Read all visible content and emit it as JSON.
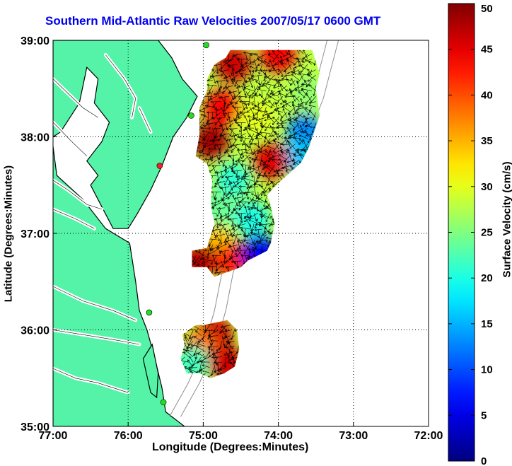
{
  "title": "Southern Mid-Atlantic Raw Velocities 2007/05/17 0600 GMT",
  "axes": {
    "xlabel": "Longitude (Degrees:Minutes)",
    "ylabel": "Latitude (Degrees:Minutes)",
    "xticks": [
      {
        "value": -77,
        "label": "77:00"
      },
      {
        "value": -76,
        "label": "76:00"
      },
      {
        "value": -75,
        "label": "75:00"
      },
      {
        "value": -74,
        "label": "74:00"
      },
      {
        "value": -73,
        "label": "73:00"
      },
      {
        "value": -72,
        "label": "72:00"
      }
    ],
    "yticks": [
      {
        "value": 35,
        "label": "35:00"
      },
      {
        "value": 36,
        "label": "36:00"
      },
      {
        "value": 37,
        "label": "37:00"
      },
      {
        "value": 38,
        "label": "38:00"
      },
      {
        "value": 39,
        "label": "39:00"
      }
    ],
    "xlim": [
      -77,
      -72
    ],
    "ylim": [
      35,
      39
    ],
    "grid": true
  },
  "colorbar": {
    "label": "Surface Velocity (cm/s)",
    "min": 0,
    "max": 50,
    "ticks": [
      "0",
      "5",
      "10",
      "15",
      "20",
      "25",
      "30",
      "35",
      "40",
      "45",
      "50"
    ],
    "colormap": "jet"
  },
  "colors": {
    "land": "#55f3a8",
    "ocean": "#ffffff",
    "coastline": "#000000",
    "bathymetry": "#8f8f8f",
    "title": "#0000ee"
  },
  "radar_sites": [
    {
      "lon": -74.96,
      "lat": 38.95,
      "color": "#22dd22"
    },
    {
      "lon": -75.16,
      "lat": 38.22,
      "color": "#22dd22"
    },
    {
      "lon": -75.58,
      "lat": 37.7,
      "color": "#ee2222"
    },
    {
      "lon": -75.72,
      "lat": 36.18,
      "color": "#22dd22"
    },
    {
      "lon": -75.53,
      "lat": 35.25,
      "color": "#22dd22"
    }
  ],
  "velocity_regions": [
    {
      "name": "northern-field",
      "outline": [
        [
          -74.64,
          38.9
        ],
        [
          -73.55,
          38.9
        ],
        [
          -73.45,
          38.66
        ],
        [
          -73.5,
          38.5
        ],
        [
          -73.45,
          38.22
        ],
        [
          -73.6,
          37.88
        ],
        [
          -73.7,
          37.73
        ],
        [
          -74.0,
          37.52
        ],
        [
          -74.15,
          37.4
        ],
        [
          -74.1,
          37.28
        ],
        [
          -74.05,
          37.1
        ],
        [
          -74.1,
          36.9
        ],
        [
          -74.15,
          36.82
        ],
        [
          -74.4,
          36.72
        ],
        [
          -74.5,
          36.65
        ],
        [
          -74.85,
          36.55
        ],
        [
          -74.95,
          36.65
        ],
        [
          -75.15,
          36.65
        ],
        [
          -75.15,
          36.82
        ],
        [
          -74.95,
          36.85
        ],
        [
          -74.85,
          37.1
        ],
        [
          -74.9,
          37.3
        ],
        [
          -74.88,
          37.55
        ],
        [
          -74.95,
          37.72
        ],
        [
          -75.1,
          37.8
        ],
        [
          -75.05,
          38.02
        ],
        [
          -75.05,
          38.3
        ],
        [
          -74.95,
          38.48
        ],
        [
          -74.95,
          38.6
        ],
        [
          -74.85,
          38.75
        ],
        [
          -74.7,
          38.82
        ]
      ]
    },
    {
      "name": "southern-field",
      "outline": [
        [
          -75.0,
          36.05
        ],
        [
          -74.68,
          36.1
        ],
        [
          -74.55,
          36.0
        ],
        [
          -74.52,
          35.8
        ],
        [
          -74.58,
          35.62
        ],
        [
          -74.72,
          35.55
        ],
        [
          -74.9,
          35.5
        ],
        [
          -75.05,
          35.55
        ],
        [
          -75.22,
          35.55
        ],
        [
          -75.3,
          35.7
        ],
        [
          -75.25,
          35.85
        ],
        [
          -75.28,
          35.95
        ],
        [
          -75.1,
          36.05
        ]
      ]
    }
  ],
  "velocity_field": {
    "speed_range_cm_s": [
      0,
      50
    ],
    "hotspots": [
      {
        "lon": -74.6,
        "lat": 38.75,
        "speed": 46
      },
      {
        "lon": -74.0,
        "lat": 38.85,
        "speed": 44
      },
      {
        "lon": -73.6,
        "lat": 38.45,
        "speed": 26
      },
      {
        "lon": -73.65,
        "lat": 38.05,
        "speed": 13
      },
      {
        "lon": -73.75,
        "lat": 37.8,
        "speed": 16
      },
      {
        "lon": -74.9,
        "lat": 37.95,
        "speed": 48
      },
      {
        "lon": -74.75,
        "lat": 38.3,
        "speed": 44
      },
      {
        "lon": -74.3,
        "lat": 38.2,
        "speed": 30
      },
      {
        "lon": -74.1,
        "lat": 37.75,
        "speed": 45
      },
      {
        "lon": -74.6,
        "lat": 37.55,
        "speed": 21
      },
      {
        "lon": -74.8,
        "lat": 37.25,
        "speed": 24
      },
      {
        "lon": -74.35,
        "lat": 37.15,
        "speed": 20
      },
      {
        "lon": -74.85,
        "lat": 36.9,
        "speed": 34
      },
      {
        "lon": -75.05,
        "lat": 36.72,
        "speed": 47
      },
      {
        "lon": -74.6,
        "lat": 36.72,
        "speed": 42
      },
      {
        "lon": -74.25,
        "lat": 36.8,
        "speed": 6
      },
      {
        "lon": -74.85,
        "lat": 35.95,
        "speed": 46
      },
      {
        "lon": -75.05,
        "lat": 35.8,
        "speed": 38
      },
      {
        "lon": -75.15,
        "lat": 35.65,
        "speed": 22
      },
      {
        "lon": -74.7,
        "lat": 35.65,
        "speed": 46
      }
    ]
  }
}
